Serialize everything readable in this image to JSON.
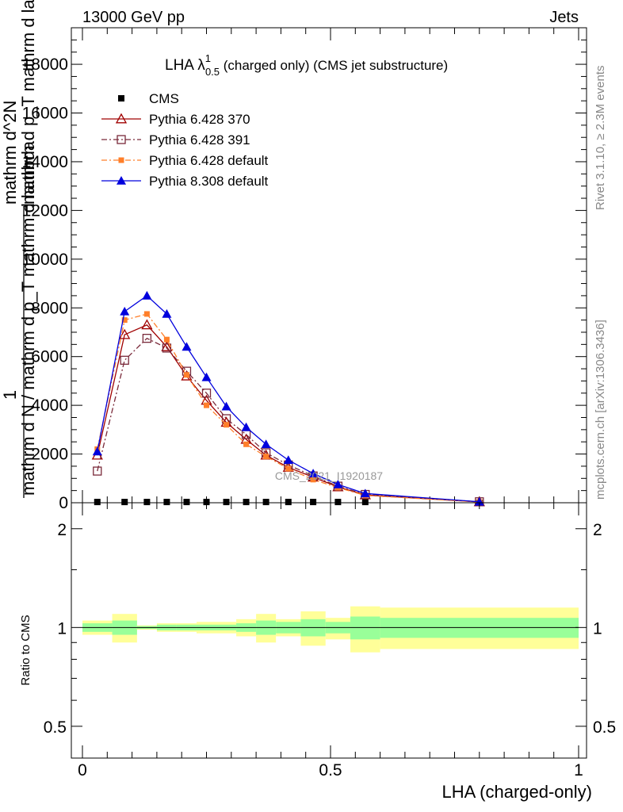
{
  "header": {
    "left": "13000 GeV pp",
    "right": "Jets"
  },
  "side_labels": {
    "rivet": "Rivet 3.1.10, ≥ 2.3M events",
    "mcplots": "mcplots.cern.ch [arXiv:1306.3436]"
  },
  "watermark": "CMS_2021_I1920187",
  "chart_data": [
    {
      "type": "line",
      "title": {
        "prefix": "LHA λ",
        "sup": "1",
        "sub": "0.5",
        "suffix": " (charged only) (CMS jet substructure)"
      },
      "ylabel": {
        "numerator": "1",
        "denominator": "mathrm d N / mathrm d p_T mathrm d lambda",
        "top_line": "mathrm d^2N",
        "mid_line": "mathrm d p_T mathrm d lambda"
      },
      "ylim": [
        0,
        19500
      ],
      "xlim": [
        -0.02,
        1.02
      ],
      "yticks": [
        0,
        2000,
        4000,
        6000,
        8000,
        10000,
        12000,
        14000,
        16000,
        18000
      ],
      "ytick_labels": [
        "0",
        "2000",
        "4000",
        "6000",
        "8000",
        "10000",
        "12000",
        "14000",
        "16000",
        "18000"
      ],
      "grid": false,
      "legend_position": "top-left",
      "series": [
        {
          "name": "CMS",
          "color": "#000000",
          "marker": "square-filled",
          "line": "none",
          "x": [
            0.03,
            0.085,
            0.13,
            0.17,
            0.21,
            0.25,
            0.29,
            0.33,
            0.37,
            0.415,
            0.465,
            0.515,
            0.57,
            0.8
          ],
          "y": [
            30,
            30,
            30,
            30,
            30,
            30,
            30,
            30,
            30,
            30,
            30,
            30,
            30,
            0
          ]
        },
        {
          "name": "Pythia 6.428 370",
          "color": "#a00000",
          "marker": "triangle-open",
          "line": "solid",
          "x": [
            0.03,
            0.085,
            0.13,
            0.17,
            0.21,
            0.25,
            0.29,
            0.33,
            0.37,
            0.415,
            0.465,
            0.515,
            0.57,
            0.8
          ],
          "y": [
            1950,
            6900,
            7300,
            6400,
            5200,
            4200,
            3300,
            2600,
            1950,
            1450,
            1050,
            650,
            320,
            35
          ]
        },
        {
          "name": "Pythia 6.428 391",
          "color": "#7a2a3a",
          "marker": "square-open",
          "line": "dashdot",
          "x": [
            0.03,
            0.085,
            0.13,
            0.17,
            0.21,
            0.25,
            0.29,
            0.33,
            0.37,
            0.415,
            0.465,
            0.515,
            0.57,
            0.8
          ],
          "y": [
            1300,
            5850,
            6750,
            6350,
            5400,
            4500,
            3450,
            2800,
            2050,
            1550,
            1100,
            680,
            340,
            40
          ]
        },
        {
          "name": "Pythia 6.428 default",
          "color": "#ff7f2a",
          "marker": "square-filled-small",
          "line": "dashdot",
          "x": [
            0.03,
            0.085,
            0.13,
            0.17,
            0.21,
            0.25,
            0.29,
            0.33,
            0.37,
            0.415,
            0.465,
            0.515,
            0.57,
            0.8
          ],
          "y": [
            2200,
            7500,
            7750,
            6700,
            5250,
            4000,
            3200,
            2400,
            1900,
            1400,
            950,
            620,
            300,
            30
          ]
        },
        {
          "name": "Pythia 8.308 default",
          "color": "#0000dd",
          "marker": "triangle-filled",
          "line": "solid",
          "x": [
            0.03,
            0.085,
            0.13,
            0.17,
            0.21,
            0.25,
            0.29,
            0.33,
            0.37,
            0.415,
            0.465,
            0.515,
            0.57,
            0.8
          ],
          "y": [
            2100,
            7850,
            8500,
            7750,
            6400,
            5150,
            3950,
            3100,
            2400,
            1750,
            1200,
            750,
            380,
            40
          ]
        }
      ]
    },
    {
      "type": "band",
      "ylabel": "Ratio to CMS",
      "xlabel": "LHA (charged-only)",
      "ylim": [
        0.4,
        2.4
      ],
      "yscale": "log",
      "yticks": [
        0.5,
        1,
        2
      ],
      "ytick_labels": [
        "0.5",
        "1",
        "2"
      ],
      "xticks": [
        0,
        0.5,
        1
      ],
      "xtick_labels": [
        "0",
        "0.5",
        "1"
      ],
      "reference_line": 1,
      "bins": [
        {
          "x0": 0.0,
          "x1": 0.06,
          "inner": [
            0.97,
            1.03
          ],
          "outer": [
            0.95,
            1.05
          ]
        },
        {
          "x0": 0.06,
          "x1": 0.11,
          "inner": [
            0.95,
            1.05
          ],
          "outer": [
            0.9,
            1.1
          ]
        },
        {
          "x0": 0.11,
          "x1": 0.15,
          "inner": [
            0.99,
            1.01
          ],
          "outer": [
            0.985,
            1.015
          ]
        },
        {
          "x0": 0.15,
          "x1": 0.19,
          "inner": [
            0.98,
            1.02
          ],
          "outer": [
            0.97,
            1.03
          ]
        },
        {
          "x0": 0.19,
          "x1": 0.23,
          "inner": [
            0.98,
            1.02
          ],
          "outer": [
            0.97,
            1.03
          ]
        },
        {
          "x0": 0.23,
          "x1": 0.27,
          "inner": [
            0.98,
            1.02
          ],
          "outer": [
            0.96,
            1.04
          ]
        },
        {
          "x0": 0.27,
          "x1": 0.31,
          "inner": [
            0.98,
            1.02
          ],
          "outer": [
            0.96,
            1.04
          ]
        },
        {
          "x0": 0.31,
          "x1": 0.35,
          "inner": [
            0.97,
            1.03
          ],
          "outer": [
            0.94,
            1.06
          ]
        },
        {
          "x0": 0.35,
          "x1": 0.39,
          "inner": [
            0.95,
            1.05
          ],
          "outer": [
            0.9,
            1.1
          ]
        },
        {
          "x0": 0.39,
          "x1": 0.44,
          "inner": [
            0.96,
            1.04
          ],
          "outer": [
            0.94,
            1.06
          ]
        },
        {
          "x0": 0.44,
          "x1": 0.49,
          "inner": [
            0.94,
            1.06
          ],
          "outer": [
            0.88,
            1.12
          ]
        },
        {
          "x0": 0.49,
          "x1": 0.54,
          "inner": [
            0.96,
            1.04
          ],
          "outer": [
            0.92,
            1.07
          ]
        },
        {
          "x0": 0.54,
          "x1": 0.6,
          "inner": [
            0.92,
            1.08
          ],
          "outer": [
            0.84,
            1.16
          ]
        },
        {
          "x0": 0.6,
          "x1": 1.0,
          "inner": [
            0.93,
            1.07
          ],
          "outer": [
            0.86,
            1.15
          ]
        }
      ],
      "inner_color": "#99ff99",
      "outer_color": "#ffff99"
    }
  ]
}
